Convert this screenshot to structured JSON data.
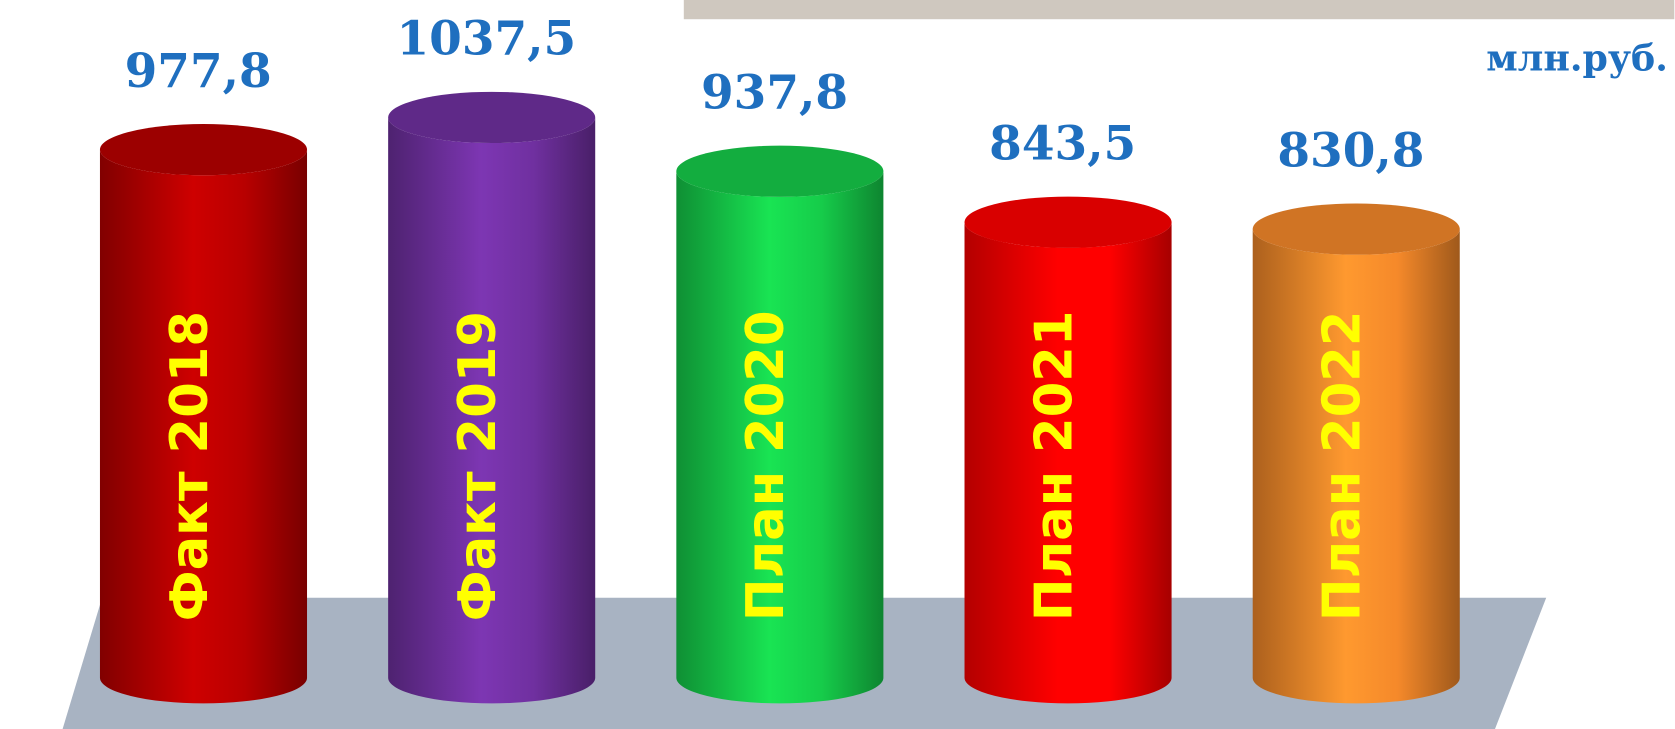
{
  "chart_data": {
    "type": "cylinder",
    "unit": "млн.руб.",
    "categories": [
      "Факт 2018",
      "Факт 2019",
      "План 2020",
      "План 2021",
      "План 2022"
    ],
    "values": [
      977.8,
      1037.5,
      937.8,
      843.5,
      830.8
    ],
    "value_labels": [
      "977,8",
      "1037,5",
      "937,8",
      "843,5",
      "830,8"
    ],
    "colors": [
      "#b80000",
      "#7030a0",
      "#16cc4a",
      "#ff0000",
      "#f5892a"
    ]
  }
}
